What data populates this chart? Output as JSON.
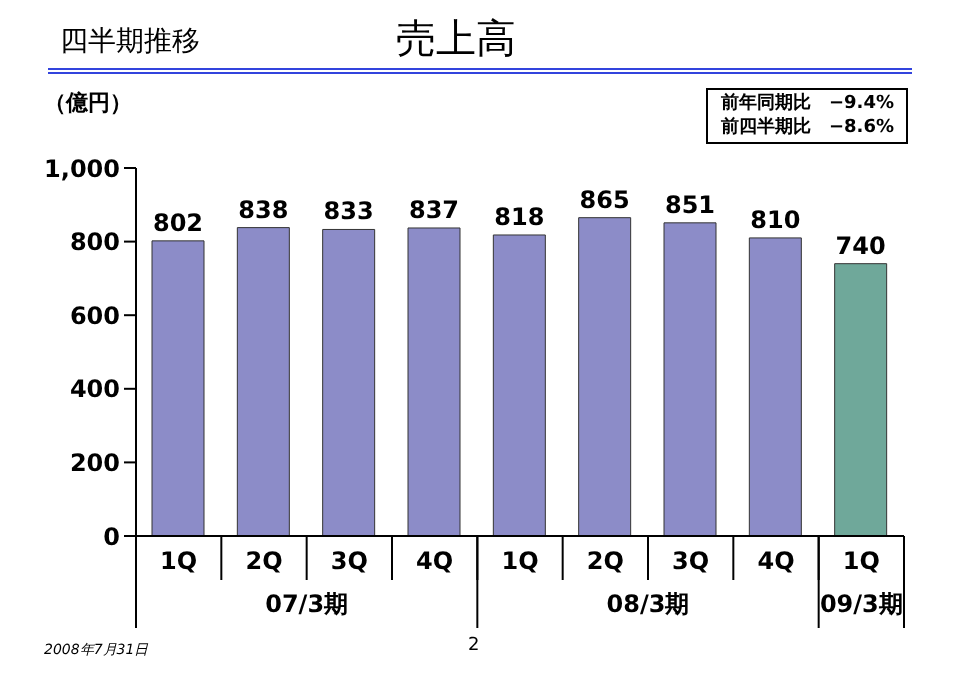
{
  "chart_data": {
    "type": "bar",
    "title": "売上高",
    "subtitle": "四半期推移",
    "ylabel": "（億円）",
    "categories": [
      "1Q",
      "2Q",
      "3Q",
      "4Q",
      "1Q",
      "2Q",
      "3Q",
      "4Q",
      "1Q"
    ],
    "values": [
      802,
      838,
      833,
      837,
      818,
      865,
      851,
      810,
      740
    ],
    "colors": [
      "#8c8cc8",
      "#8c8cc8",
      "#8c8cc8",
      "#8c8cc8",
      "#8c8cc8",
      "#8c8cc8",
      "#8c8cc8",
      "#8c8cc8",
      "#6fa89a"
    ],
    "ylim": [
      0,
      1000
    ],
    "yticks": [
      0,
      200,
      400,
      600,
      800,
      {
        "value": 1000,
        "label": "1,000"
      }
    ],
    "grid": false,
    "data_labels": true,
    "annotations": [
      "前年同期比　−9.4%",
      "前四半期比　−8.6%",
      "07/3期",
      "08/3期",
      "09/3期",
      "2008年7月31日",
      "2"
    ]
  }
}
